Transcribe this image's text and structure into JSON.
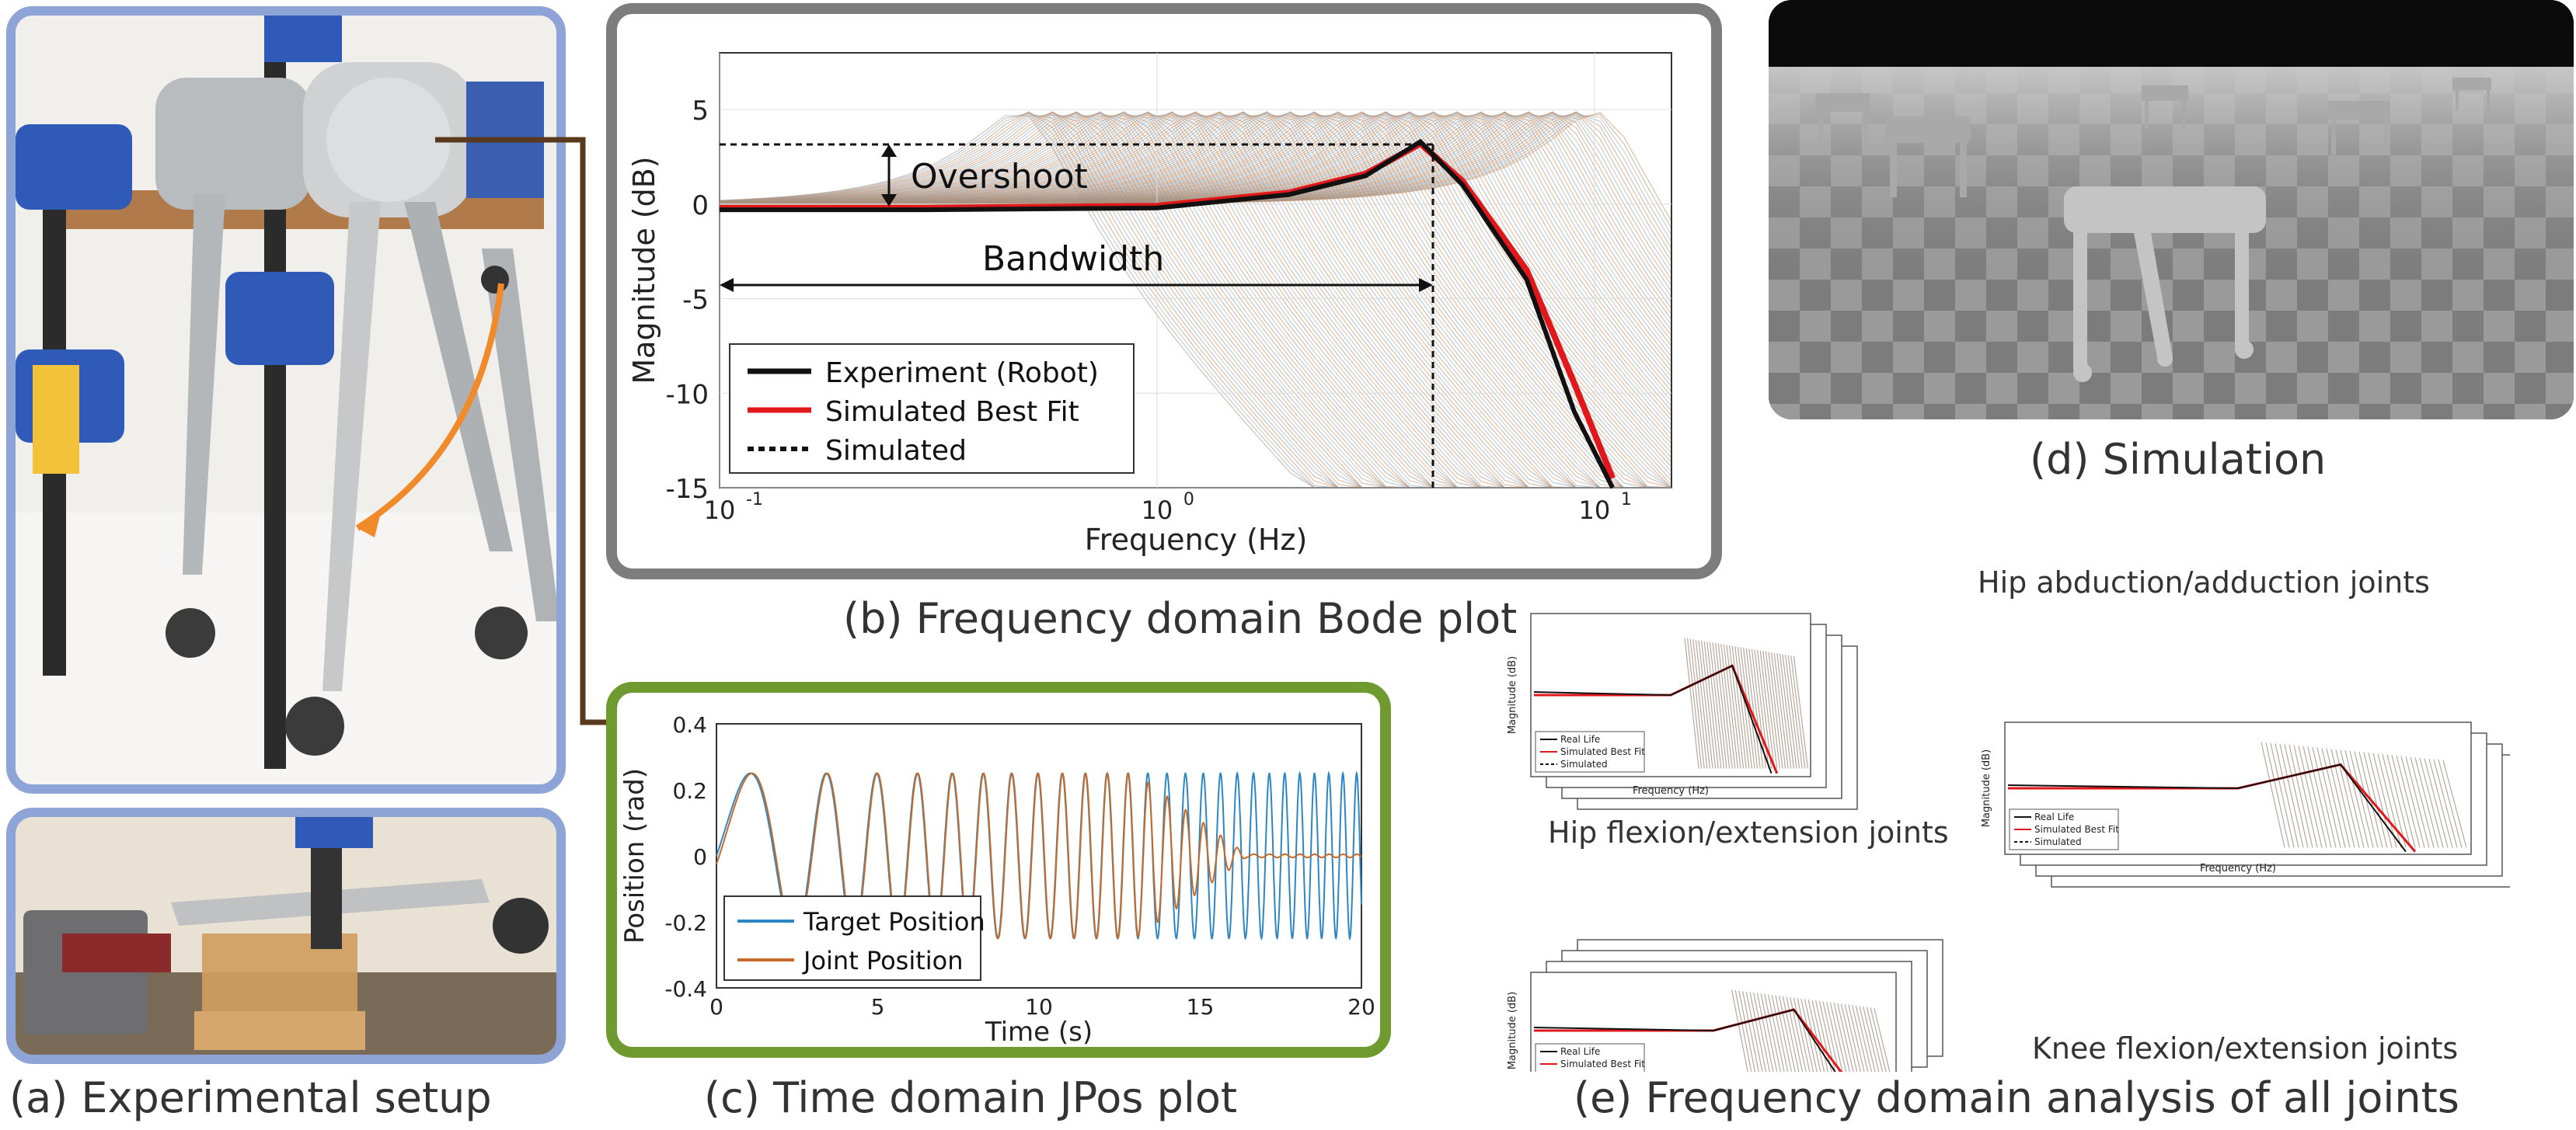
{
  "captions": {
    "a": "(a) Experimental setup",
    "b": "(b) Frequency domain Bode plot",
    "c": "(c) Time domain JPos plot",
    "d": "(d) Simulation",
    "e": "(e) Frequency domain analysis of all joints"
  },
  "bode": {
    "ylabel": "Magnitude (dB)",
    "xlabel": "Frequency (Hz)",
    "yticks": [
      "5",
      "0",
      "-5",
      "-10",
      "-15"
    ],
    "xticks": [
      "10",
      "10",
      "10"
    ],
    "xtick_exps": [
      "-1",
      "0",
      "1"
    ],
    "overshoot_label": "Overshoot",
    "bandwidth_label": "Bandwidth",
    "legend": [
      "Experiment (Robot)",
      "Simulated Best Fit",
      "Simulated"
    ]
  },
  "time": {
    "ylabel": "Position (rad)",
    "xlabel": "Time (s)",
    "yticks": [
      "0.4",
      "0.2",
      "0",
      "-0.2",
      "-0.4"
    ],
    "xticks": [
      "0",
      "5",
      "10",
      "15",
      "20"
    ],
    "legend": [
      "Target Position",
      "Joint Position"
    ]
  },
  "joints": {
    "hip_abduction": "Hip abduction/adduction joints",
    "hip_flexion": "Hip flexion/extension joints",
    "knee_flexion": "Knee flexion/extension joints",
    "mini_legend": [
      "Real Life",
      "Simulated Best Fit",
      "Simulated"
    ],
    "mini_ylabel": "Magnitude (dB)",
    "mini_xlabel": "Frequency (Hz)"
  },
  "chart_data": [
    {
      "type": "line",
      "title": "",
      "xlabel": "Frequency (Hz)",
      "ylabel": "Magnitude (dB)",
      "xscale": "log",
      "xlim": [
        0.1,
        15
      ],
      "ylim": [
        -15,
        8
      ],
      "annotations": [
        "Overshoot",
        "Bandwidth"
      ],
      "series": [
        {
          "name": "Experiment (Robot)",
          "x": [
            0.1,
            0.3,
            1.0,
            2.0,
            3.0,
            4.0,
            5.0,
            7.0,
            9.0,
            11.0
          ],
          "y": [
            -0.3,
            -0.3,
            -0.2,
            0.5,
            1.5,
            3.3,
            1.0,
            -4.0,
            -11.0,
            -15.0
          ]
        },
        {
          "name": "Simulated Best Fit",
          "x": [
            0.1,
            0.3,
            1.0,
            2.0,
            3.0,
            4.0,
            5.0,
            7.0,
            9.0,
            11.0
          ],
          "y": [
            -0.2,
            -0.2,
            -0.1,
            0.6,
            1.6,
            3.2,
            1.2,
            -3.5,
            -9.5,
            -14.5
          ]
        },
        {
          "name": "Simulated",
          "x": [
            0.1,
            1.0,
            4.0
          ],
          "y": [
            -0.2,
            0.0,
            3.2
          ]
        }
      ],
      "legend": "bottom-left"
    },
    {
      "type": "line",
      "title": "",
      "xlabel": "Time (s)",
      "ylabel": "Position (rad)",
      "xlim": [
        0,
        20
      ],
      "ylim": [
        -0.4,
        0.4
      ],
      "series": [
        {
          "name": "Target Position",
          "x": [
            0,
            20
          ],
          "amplitude": 0.25
        },
        {
          "name": "Joint Position",
          "x": [
            0,
            20
          ],
          "amplitude": 0.25
        }
      ],
      "legend": "bottom-left"
    }
  ]
}
